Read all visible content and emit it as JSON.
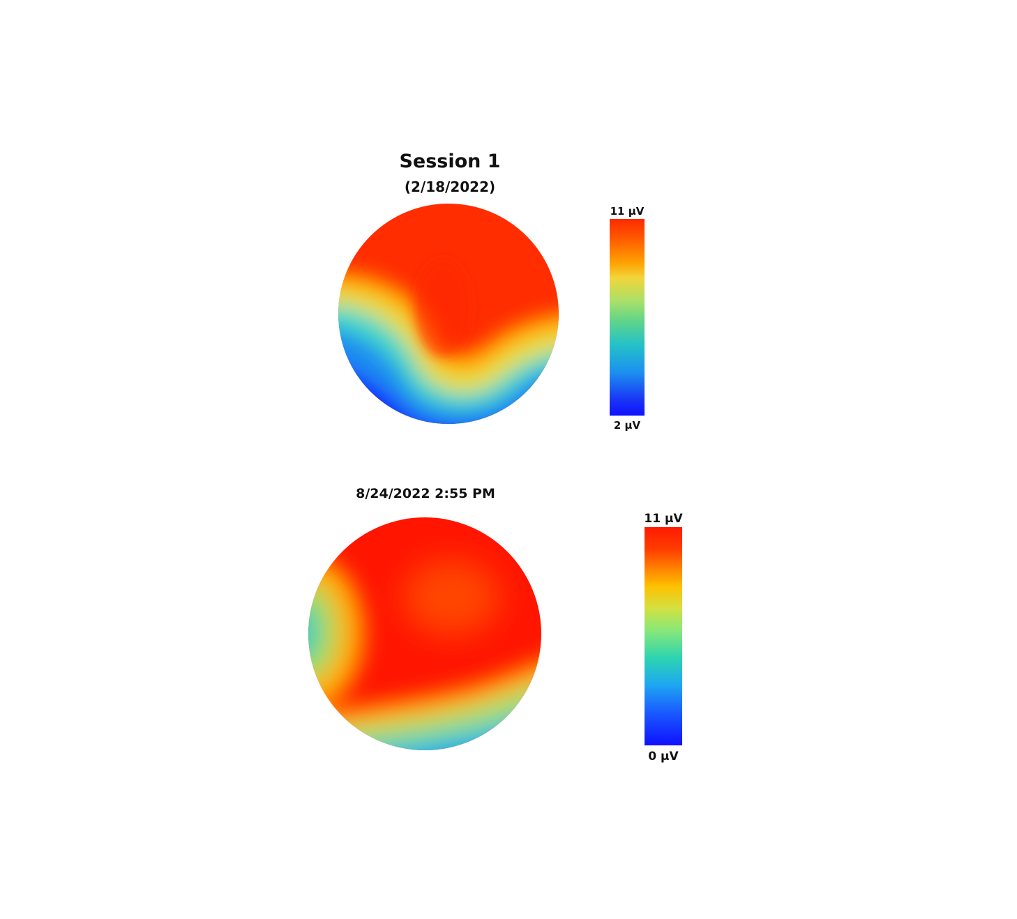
{
  "chart_data": [
    {
      "type": "heatmap",
      "title": "Session 1",
      "subtitle": "(2/18/2022)",
      "colorbar": {
        "max_label": "11 µV",
        "min_label": "2 µV",
        "range": [
          2,
          11
        ]
      },
      "colormap": [
        "#0f10ff",
        "#1c90f0",
        "#24c2c8",
        "#5fd48a",
        "#a8e06a",
        "#f2d53a",
        "#ffa000",
        "#ff5a00",
        "#ff2a00"
      ]
    },
    {
      "type": "heatmap",
      "title": "8/24/2022 2:55 PM",
      "colorbar": {
        "max_label": "11 µV",
        "min_label": "0 µV",
        "range": [
          0,
          11
        ]
      },
      "colormap": [
        "#0f10ff",
        "#1a60ff",
        "#1ea8f0",
        "#2cd4b0",
        "#8ae878",
        "#d4e040",
        "#ffc000",
        "#ff8a00",
        "#ff1a00"
      ]
    }
  ]
}
